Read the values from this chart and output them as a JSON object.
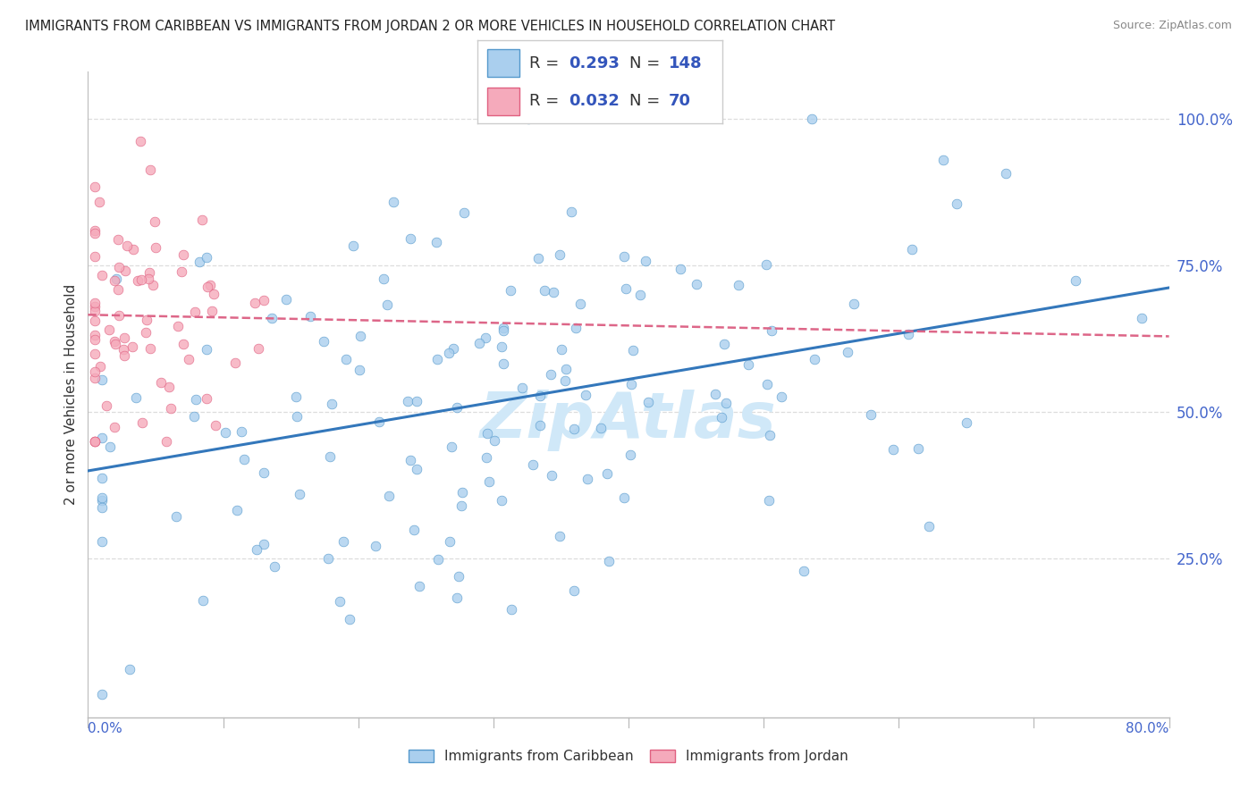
{
  "title": "IMMIGRANTS FROM CARIBBEAN VS IMMIGRANTS FROM JORDAN 2 OR MORE VEHICLES IN HOUSEHOLD CORRELATION CHART",
  "source": "Source: ZipAtlas.com",
  "ylabel": "2 or more Vehicles in Household",
  "xlim": [
    0.0,
    0.8
  ],
  "ylim": [
    -0.02,
    1.08
  ],
  "caribbean_R": 0.293,
  "caribbean_N": 148,
  "jordan_R": 0.032,
  "jordan_N": 70,
  "caribbean_color": "#aacfee",
  "jordan_color": "#f5aabb",
  "caribbean_edge_color": "#5599cc",
  "jordan_edge_color": "#e06080",
  "caribbean_line_color": "#3377bb",
  "jordan_line_color": "#dd6688",
  "legend_text_color": "#3355bb",
  "background_color": "#ffffff",
  "watermark_color": "#d0e8f8",
  "title_color": "#222222",
  "source_color": "#888888",
  "ytick_color": "#4466cc",
  "xlabel_color": "#4466cc",
  "grid_color": "#dddddd",
  "axis_color": "#bbbbbb"
}
